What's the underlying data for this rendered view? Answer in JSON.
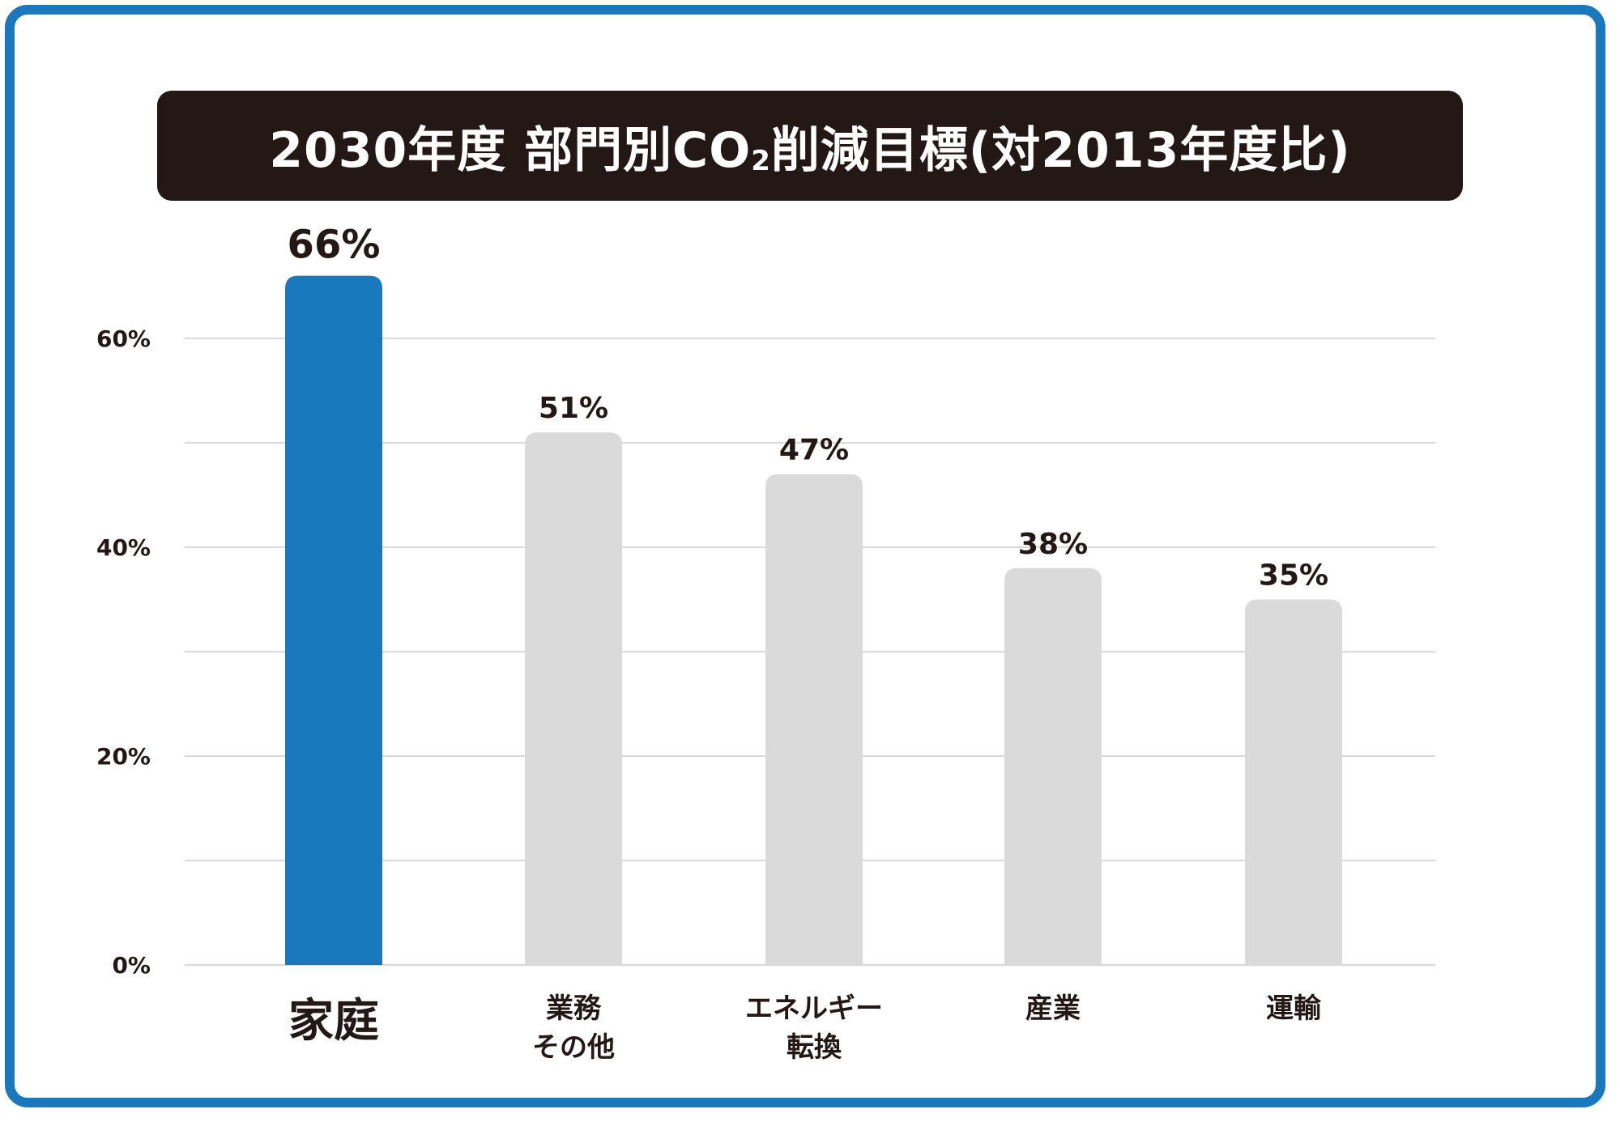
{
  "colors": {
    "frame": "#1a79bd",
    "title_bg": "#231815",
    "title_text": "#ffffff",
    "highlight_bar": "#1a79bd",
    "bar": "#dadada",
    "grid": "#d9d9d9",
    "text": "#231815"
  },
  "header": {
    "title_main": "2030年度 部門別CO",
    "title_sub": "2",
    "title_rest": "削減目標(対2013年度比)"
  },
  "chart_data": {
    "type": "bar",
    "title": "2030年度 部門別CO₂削減目標(対2013年度比)",
    "categories": [
      [
        "家庭"
      ],
      [
        "業務",
        "その他"
      ],
      [
        "エネルギー",
        "転換"
      ],
      [
        "産業"
      ],
      [
        "運輸"
      ]
    ],
    "values": [
      66,
      51,
      47,
      38,
      35
    ],
    "value_labels": [
      "66%",
      "51%",
      "47%",
      "38%",
      "35%"
    ],
    "highlight_index": 0,
    "ylim": [
      0,
      70
    ],
    "yticks": [
      0,
      20,
      40,
      60
    ],
    "ytick_labels": [
      "0%",
      "20%",
      "40%",
      "60%"
    ],
    "minor_gridlines": [
      10,
      30,
      50
    ],
    "grid": true,
    "legend": "none"
  }
}
